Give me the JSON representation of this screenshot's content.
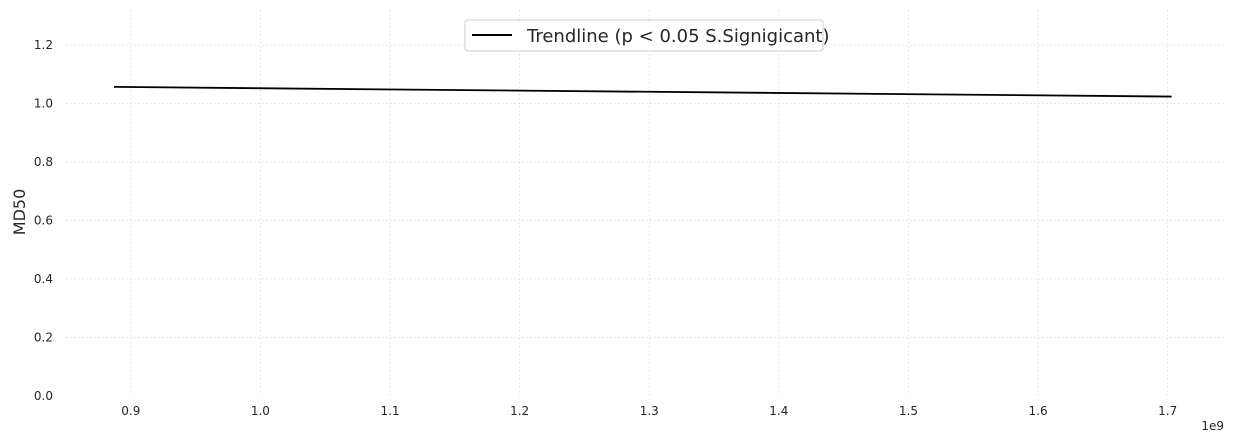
{
  "chart_data": {
    "type": "line",
    "title": "",
    "xlabel": "",
    "ylabel": "MD50",
    "x_offset_label": "1e9",
    "xlim": [
      0.85,
      1.745
    ],
    "ylim": [
      0.0,
      1.32
    ],
    "x_ticks": [
      0.9,
      1.0,
      1.1,
      1.2,
      1.3,
      1.4,
      1.5,
      1.6,
      1.7
    ],
    "x_tick_labels": [
      "0.9",
      "1.0",
      "1.1",
      "1.2",
      "1.3",
      "1.4",
      "1.5",
      "1.6",
      "1.7"
    ],
    "y_ticks": [
      0.0,
      0.2,
      0.4,
      0.6,
      0.8,
      1.0,
      1.2
    ],
    "y_tick_labels": [
      "0.0",
      "0.2",
      "0.4",
      "0.6",
      "0.8",
      "1.0",
      "1.2"
    ],
    "grid": true,
    "legend_position": "top-center",
    "series": [
      {
        "name": "Trendline (p < 0.05 S.Signigicant)",
        "color": "#000000",
        "x": [
          0.887,
          1.703
        ],
        "y": [
          1.057,
          1.024
        ]
      }
    ]
  }
}
